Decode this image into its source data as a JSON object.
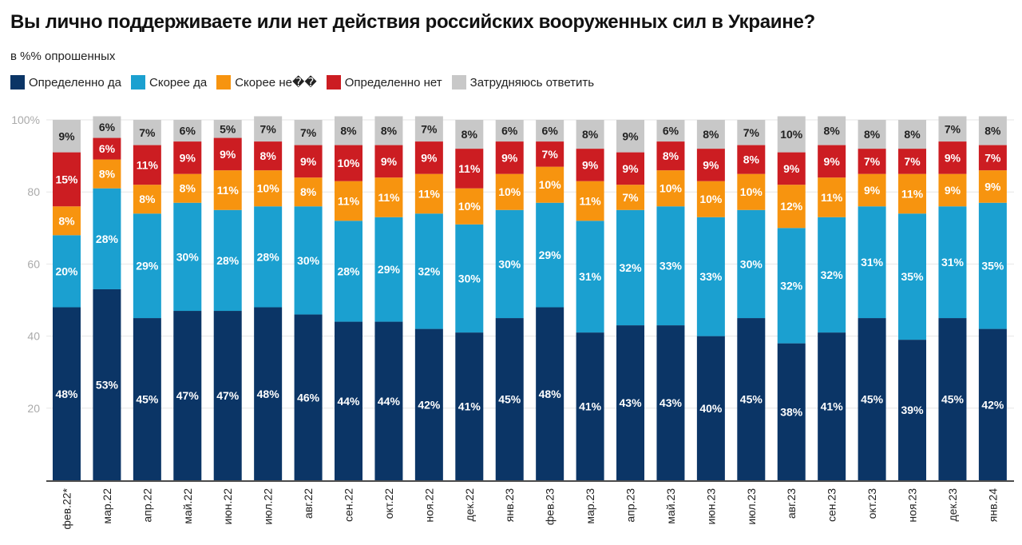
{
  "title": "Вы лично поддерживаете или нет действия российских вооруженных сил в Украине?",
  "subtitle": "в %% опрошенных",
  "chart_data": {
    "type": "bar",
    "stacked": true,
    "title": "Вы лично поддерживаете или нет действия российских вооруженных сил в Украине?",
    "subtitle": "в %% опрошенных",
    "ylim": [
      0,
      100
    ],
    "yticks": [
      "20",
      "40",
      "60",
      "80",
      "100%"
    ],
    "ytick_values": [
      20,
      40,
      60,
      80,
      100
    ],
    "grid": true,
    "legend": "top-left",
    "categories": [
      "фев.22*",
      "мар.22",
      "апр.22",
      "май.22",
      "июн.22",
      "июл.22",
      "авг.22",
      "сен.22",
      "окт.22",
      "ноя.22",
      "дек.22",
      "янв.23",
      "фев.23",
      "мар.23",
      "апр.23",
      "май.23",
      "июн.23",
      "июл.23",
      "авг.23",
      "сен.23",
      "окт.23",
      "ноя.23",
      "дек.23",
      "янв.24"
    ],
    "series": [
      {
        "name": "Определенно да",
        "color": "#0b3566",
        "label_color": "#ffffff",
        "values": [
          48,
          53,
          45,
          47,
          47,
          48,
          46,
          44,
          44,
          42,
          41,
          45,
          48,
          41,
          43,
          43,
          40,
          45,
          38,
          41,
          45,
          39,
          45,
          42
        ]
      },
      {
        "name": "Скорее да",
        "color": "#1ba0d0",
        "label_color": "#ffffff",
        "values": [
          20,
          28,
          29,
          30,
          28,
          28,
          30,
          28,
          29,
          32,
          30,
          30,
          29,
          31,
          32,
          33,
          33,
          30,
          32,
          32,
          31,
          35,
          31,
          35
        ]
      },
      {
        "name": "Скорее не��",
        "color": "#f7940f",
        "label_color": "#ffffff",
        "values": [
          8,
          8,
          8,
          8,
          11,
          10,
          8,
          11,
          11,
          11,
          10,
          10,
          10,
          11,
          7,
          10,
          10,
          10,
          12,
          11,
          9,
          11,
          9,
          9
        ]
      },
      {
        "name": "Определенно нет",
        "color": "#cc1d22",
        "label_color": "#ffffff",
        "values": [
          15,
          6,
          11,
          9,
          9,
          8,
          9,
          10,
          9,
          9,
          11,
          9,
          7,
          9,
          9,
          8,
          9,
          8,
          9,
          9,
          7,
          7,
          9,
          7
        ]
      },
      {
        "name": "Затрудняюсь ответить",
        "color": "#c8c8c8",
        "label_color": "#222222",
        "values": [
          9,
          6,
          7,
          6,
          5,
          7,
          7,
          8,
          8,
          7,
          8,
          6,
          6,
          8,
          9,
          6,
          8,
          7,
          10,
          8,
          8,
          8,
          7,
          8
        ]
      }
    ]
  }
}
